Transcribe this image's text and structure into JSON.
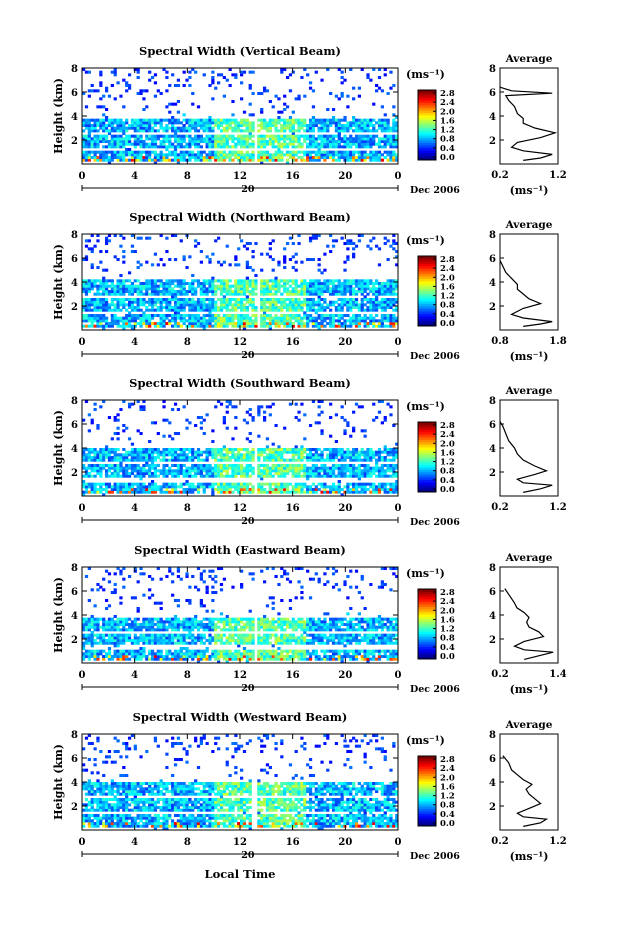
{
  "figure": {
    "x_axis_title": "Local Time",
    "units": "(ms⁻¹)",
    "date_label": "Dec 2006",
    "day_label": "20"
  },
  "chart_data": [
    {
      "type": "heatmap",
      "title": "Spectral Width (Vertical Beam)",
      "ylabel": "Height (km)",
      "xlim": [
        0,
        24
      ],
      "ylim": [
        0,
        8
      ],
      "xticks": [
        "0",
        "4",
        "8",
        "12",
        "16",
        "20",
        "0"
      ],
      "yticks": [
        "2",
        "4",
        "6",
        "8"
      ],
      "colorbar": {
        "ticks": [
          "0.0",
          "0.4",
          "0.8",
          "1.2",
          "1.6",
          "2.0",
          "2.4",
          "2.8"
        ]
      },
      "gap_hours": [
        13.0,
        13.3
      ],
      "bands": [
        {
          "y0": 0.3,
          "y1": 1.2
        },
        {
          "y0": 1.4,
          "y1": 2.4
        },
        {
          "y0": 2.6,
          "y1": 3.8
        }
      ],
      "avg": {
        "title": "Average",
        "xlabel": "(ms⁻¹)",
        "xticks": [
          "0.2",
          "1.2"
        ],
        "xlim": [
          0.2,
          1.2
        ],
        "yticks": [
          "2",
          "4",
          "6",
          "8"
        ],
        "profile": [
          [
            0.6,
            0.3
          ],
          [
            0.9,
            0.5
          ],
          [
            1.1,
            0.8
          ],
          [
            0.6,
            1.1
          ],
          [
            0.4,
            1.4
          ],
          [
            0.5,
            1.8
          ],
          [
            0.9,
            2.2
          ],
          [
            1.15,
            2.6
          ],
          [
            0.8,
            3.0
          ],
          [
            0.6,
            3.4
          ],
          [
            0.6,
            3.8
          ],
          [
            0.5,
            4.2
          ],
          [
            0.45,
            4.8
          ],
          [
            0.35,
            5.3
          ],
          [
            0.3,
            5.7
          ],
          [
            1.1,
            5.9
          ],
          [
            0.4,
            6.1
          ],
          [
            0.2,
            6.4
          ]
        ]
      }
    },
    {
      "type": "heatmap",
      "title": "Spectral Width (Northward Beam)",
      "ylabel": "Height (km)",
      "xlim": [
        0,
        24
      ],
      "ylim": [
        0,
        8
      ],
      "xticks": [
        "0",
        "4",
        "8",
        "12",
        "16",
        "20",
        "0"
      ],
      "yticks": [
        "2",
        "4",
        "6",
        "8"
      ],
      "colorbar": {
        "ticks": [
          "0.0",
          "0.4",
          "0.8",
          "1.2",
          "1.6",
          "2.0",
          "2.4",
          "2.8"
        ]
      },
      "gap_hours": [
        13.2,
        13.5
      ],
      "bands": [
        {
          "y0": 0.3,
          "y1": 1.3
        },
        {
          "y0": 1.5,
          "y1": 2.6
        },
        {
          "y0": 2.8,
          "y1": 4.2
        }
      ],
      "avg": {
        "title": "Average",
        "xlabel": "(ms⁻¹)",
        "xticks": [
          "0.8",
          "1.8"
        ],
        "xlim": [
          0.8,
          1.8
        ],
        "yticks": [
          "2",
          "4",
          "6",
          "8"
        ],
        "profile": [
          [
            1.2,
            0.3
          ],
          [
            1.5,
            0.5
          ],
          [
            1.7,
            0.7
          ],
          [
            1.2,
            1.0
          ],
          [
            1.0,
            1.3
          ],
          [
            1.2,
            1.8
          ],
          [
            1.5,
            2.2
          ],
          [
            1.3,
            2.6
          ],
          [
            1.2,
            3.0
          ],
          [
            1.1,
            3.4
          ],
          [
            1.1,
            3.8
          ],
          [
            1.0,
            4.3
          ],
          [
            0.9,
            4.8
          ],
          [
            0.85,
            5.3
          ],
          [
            0.8,
            5.8
          ]
        ]
      }
    },
    {
      "type": "heatmap",
      "title": "Spectral Width (Southward Beam)",
      "ylabel": "Height (km)",
      "xlim": [
        0,
        24
      ],
      "ylim": [
        0,
        8
      ],
      "xticks": [
        "0",
        "4",
        "8",
        "12",
        "16",
        "20",
        "0"
      ],
      "yticks": [
        "2",
        "4",
        "6",
        "8"
      ],
      "colorbar": {
        "ticks": [
          "0.0",
          "0.4",
          "0.8",
          "1.2",
          "1.6",
          "2.0",
          "2.4",
          "2.8"
        ]
      },
      "gap_hours": [
        13.0,
        13.3
      ],
      "bands": [
        {
          "y0": 0.3,
          "y1": 1.2
        },
        {
          "y0": 1.6,
          "y1": 2.6
        },
        {
          "y0": 2.9,
          "y1": 4.0
        }
      ],
      "avg": {
        "title": "Average",
        "xlabel": "",
        "xticks": [
          "0.2",
          "1.2"
        ],
        "xlim": [
          0.2,
          1.2
        ],
        "yticks": [
          "2",
          "4",
          "6",
          "8"
        ],
        "profile": [
          [
            0.6,
            0.3
          ],
          [
            0.9,
            0.6
          ],
          [
            1.1,
            0.9
          ],
          [
            0.6,
            1.1
          ],
          [
            0.5,
            1.4
          ],
          [
            0.8,
            1.8
          ],
          [
            1.0,
            2.1
          ],
          [
            0.8,
            2.5
          ],
          [
            0.6,
            3.0
          ],
          [
            0.5,
            3.5
          ],
          [
            0.45,
            4.0
          ],
          [
            0.35,
            4.6
          ],
          [
            0.3,
            5.2
          ],
          [
            0.25,
            5.8
          ],
          [
            0.2,
            6.2
          ]
        ]
      }
    },
    {
      "type": "heatmap",
      "title": "Spectral Width (Eastward Beam)",
      "ylabel": "Height (km)",
      "xlim": [
        0,
        24
      ],
      "ylim": [
        0,
        8
      ],
      "xticks": [
        "0",
        "4",
        "8",
        "12",
        "16",
        "20",
        "0"
      ],
      "yticks": [
        "2",
        "4",
        "6",
        "8"
      ],
      "colorbar": {
        "ticks": [
          "0.0",
          "0.4",
          "0.8",
          "1.2",
          "1.6",
          "2.0",
          "2.4",
          "2.8"
        ]
      },
      "gap_hours": [
        13.0,
        13.3
      ],
      "bands": [
        {
          "y0": 0.3,
          "y1": 1.2
        },
        {
          "y0": 1.5,
          "y1": 2.4
        },
        {
          "y0": 2.6,
          "y1": 3.7
        }
      ],
      "avg": {
        "title": "Average",
        "xlabel": "(ms⁻¹)",
        "xticks": [
          "0.2",
          "1.4"
        ],
        "xlim": [
          0.2,
          1.4
        ],
        "yticks": [
          "2",
          "4",
          "6",
          "8"
        ],
        "profile": [
          [
            0.7,
            0.3
          ],
          [
            1.0,
            0.6
          ],
          [
            1.3,
            0.9
          ],
          [
            0.7,
            1.1
          ],
          [
            0.5,
            1.4
          ],
          [
            0.7,
            1.8
          ],
          [
            1.1,
            2.2
          ],
          [
            1.0,
            2.6
          ],
          [
            0.8,
            3.0
          ],
          [
            0.75,
            3.4
          ],
          [
            0.8,
            3.8
          ],
          [
            0.7,
            4.2
          ],
          [
            0.55,
            4.6
          ],
          [
            0.5,
            5.0
          ],
          [
            0.4,
            5.6
          ],
          [
            0.3,
            6.2
          ]
        ]
      }
    },
    {
      "type": "heatmap",
      "title": "Spectral Width (Westward Beam)",
      "ylabel": "Height (km)",
      "xlim": [
        0,
        24
      ],
      "ylim": [
        0,
        8
      ],
      "xticks": [
        "0",
        "4",
        "8",
        "12",
        "16",
        "20",
        "0"
      ],
      "yticks": [
        "2",
        "4",
        "6",
        "8"
      ],
      "colorbar": {
        "ticks": [
          "0.0",
          "0.4",
          "0.8",
          "1.2",
          "1.6",
          "2.0",
          "2.4",
          "2.8"
        ]
      },
      "gap_hours": [
        12.8,
        13.2
      ],
      "bands": [
        {
          "y0": 0.3,
          "y1": 1.3
        },
        {
          "y0": 1.6,
          "y1": 2.6
        },
        {
          "y0": 2.9,
          "y1": 4.1
        }
      ],
      "avg": {
        "title": "Average",
        "xlabel": "(ms⁻¹)",
        "xticks": [
          "0.2",
          "1.2"
        ],
        "xlim": [
          0.2,
          1.2
        ],
        "yticks": [
          "2",
          "4",
          "6",
          "8"
        ],
        "profile": [
          [
            0.6,
            0.3
          ],
          [
            0.9,
            0.6
          ],
          [
            1.0,
            0.9
          ],
          [
            0.6,
            1.1
          ],
          [
            0.5,
            1.4
          ],
          [
            0.7,
            1.8
          ],
          [
            0.9,
            2.2
          ],
          [
            0.8,
            2.6
          ],
          [
            0.7,
            3.0
          ],
          [
            0.65,
            3.4
          ],
          [
            0.75,
            3.8
          ],
          [
            0.6,
            4.2
          ],
          [
            0.5,
            4.6
          ],
          [
            0.4,
            5.0
          ],
          [
            0.35,
            5.6
          ],
          [
            0.25,
            6.2
          ]
        ]
      }
    }
  ]
}
